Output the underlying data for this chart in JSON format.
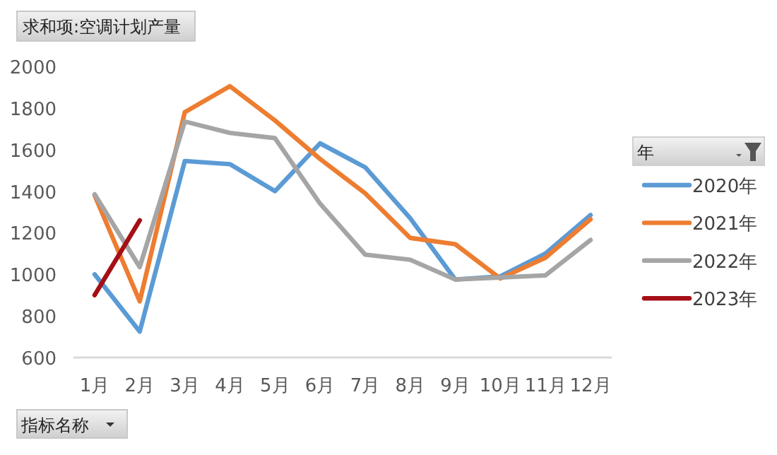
{
  "chart_data": {
    "type": "line",
    "title": "求和项:空调计划产量",
    "legend_title": "年",
    "categories": [
      "1月",
      "2月",
      "3月",
      "4月",
      "5月",
      "6月",
      "7月",
      "8月",
      "9月",
      "10月",
      "11月",
      "12月"
    ],
    "series": [
      {
        "name": "2020年",
        "color": "#5b9bd5",
        "values": [
          1000,
          725,
          1545,
          1530,
          1400,
          1630,
          1515,
          1270,
          975,
          990,
          1100,
          1285
        ]
      },
      {
        "name": "2021年",
        "color": "#ed7d31",
        "values": [
          1380,
          870,
          1780,
          1905,
          1740,
          1555,
          1390,
          1175,
          1145,
          980,
          1080,
          1265
        ]
      },
      {
        "name": "2022年",
        "color": "#a5a5a5",
        "values": [
          1385,
          1035,
          1735,
          1680,
          1655,
          1340,
          1095,
          1070,
          975,
          985,
          995,
          1165
        ]
      },
      {
        "name": "2023年",
        "color": "#a50f15",
        "values": [
          900,
          1260,
          null,
          null,
          null,
          null,
          null,
          null,
          null,
          null,
          null,
          null
        ]
      }
    ],
    "ylim": [
      600,
      2000
    ],
    "yticks": [
      600,
      800,
      1000,
      1200,
      1400,
      1600,
      1800,
      2000
    ],
    "grid": false,
    "legend": "right",
    "marker": "none",
    "line_style": "solid",
    "annotations": [
      "指标名称"
    ]
  }
}
